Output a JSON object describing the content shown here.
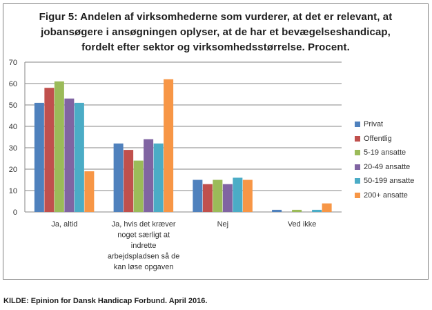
{
  "figure": {
    "title": "Figur 5: Andelen af virksomhederne som vurderer, at det er relevant, at\njobansøgere i ansøgningen oplyser, at de har et bevægelseshandicap,\nfordelt efter sektor og virksomhedsstørrelse. Procent.",
    "source": "KILDE: Epinion for Dansk Handicap Forbund. April 2016."
  },
  "chart_data": {
    "type": "bar",
    "title": "Figur 5: Andelen af virksomhederne som vurderer, at det er relevant, at jobansøgere i ansøgningen oplyser, at de har et bevægelseshandicap, fordelt efter sektor og virksomhedsstørrelse. Procent.",
    "categories": [
      "Ja, altid",
      "Ja, hvis det kræver noget særligt at indrette arbejdspladsen så de kan løse opgaven",
      "Nej",
      "Ved ikke"
    ],
    "category_lines": [
      [
        "Ja, altid"
      ],
      [
        "Ja, hvis det kræver",
        "noget særligt at",
        "indrette",
        "arbejdspladsen så de",
        "kan løse opgaven"
      ],
      [
        "Nej"
      ],
      [
        "Ved ikke"
      ]
    ],
    "series": [
      {
        "name": "Privat",
        "color": "#4f81bd",
        "values": [
          51,
          32,
          15,
          1
        ]
      },
      {
        "name": "Offentlig",
        "color": "#c0504d",
        "values": [
          58,
          29,
          13,
          0
        ]
      },
      {
        "name": "5-19 ansatte",
        "color": "#9bbb59",
        "values": [
          61,
          24,
          15,
          1
        ]
      },
      {
        "name": "20-49 ansatte",
        "color": "#8064a2",
        "values": [
          53,
          34,
          13,
          0
        ]
      },
      {
        "name": "50-199 ansatte",
        "color": "#4bacc6",
        "values": [
          51,
          32,
          16,
          1
        ]
      },
      {
        "name": "200+ ansatte",
        "color": "#f79646",
        "values": [
          19,
          62,
          15,
          4
        ]
      }
    ],
    "ylim": [
      0,
      70
    ],
    "yticks": [
      0,
      10,
      20,
      30,
      40,
      50,
      60,
      70
    ],
    "grid": true,
    "legend": "right",
    "xlabel": "",
    "ylabel": ""
  }
}
